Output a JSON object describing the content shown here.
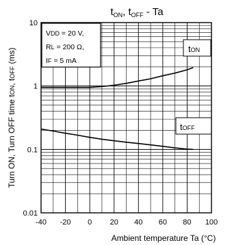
{
  "chart_data": {
    "type": "line",
    "title": {
      "main": "t",
      "sub1": "ON",
      "sep": ", t",
      "sub2": "OFF",
      "tail": " - Ta"
    },
    "xlabel": "Ambient temperature Ta (°C)",
    "ylabel": {
      "p1": "Turn ON, Turn OFF time t",
      "s1": "ON",
      "p2": ", t",
      "s2": "OFF",
      "p3": " (ms)"
    },
    "xlim": [
      -40,
      100
    ],
    "ylim": [
      0.01,
      10
    ],
    "yscale": "log",
    "x_ticks": [
      -40,
      -20,
      0,
      20,
      40,
      60,
      80,
      100
    ],
    "x_tick_labels": [
      "-40",
      "-20",
      "0",
      "20",
      "40",
      "60",
      "80",
      "100"
    ],
    "y_ticks": [
      0.01,
      0.1,
      1,
      10
    ],
    "y_tick_labels": [
      "0.01",
      "0.1",
      "1",
      "10"
    ],
    "grid": true,
    "conditions": [
      {
        "pre": "V",
        "sub": "DD",
        "post": " = 20 V,"
      },
      {
        "pre": "R",
        "sub": "L",
        "post": " = 200 Ω,"
      },
      {
        "pre": "I",
        "sub": "F",
        "post": " = 5 mA"
      }
    ],
    "series": [
      {
        "name": "tON",
        "label_main": "t",
        "label_sub": "ON",
        "x": [
          -40,
          -20,
          0,
          10,
          20,
          30,
          40,
          50,
          60,
          70,
          80,
          85
        ],
        "y": [
          0.95,
          0.95,
          0.95,
          0.98,
          1.03,
          1.1,
          1.2,
          1.3,
          1.45,
          1.6,
          1.8,
          1.95
        ]
      },
      {
        "name": "tOFF",
        "label_main": "t",
        "label_sub": "OFF",
        "x": [
          -40,
          -30,
          -20,
          -10,
          0,
          10,
          20,
          30,
          40,
          50,
          60,
          70,
          80,
          85
        ],
        "y": [
          0.21,
          0.195,
          0.18,
          0.168,
          0.155,
          0.145,
          0.137,
          0.13,
          0.124,
          0.118,
          0.112,
          0.106,
          0.101,
          0.1
        ]
      }
    ],
    "colors": {
      "line": "#000000",
      "grid": "#000000",
      "background": "#ffffff"
    }
  }
}
